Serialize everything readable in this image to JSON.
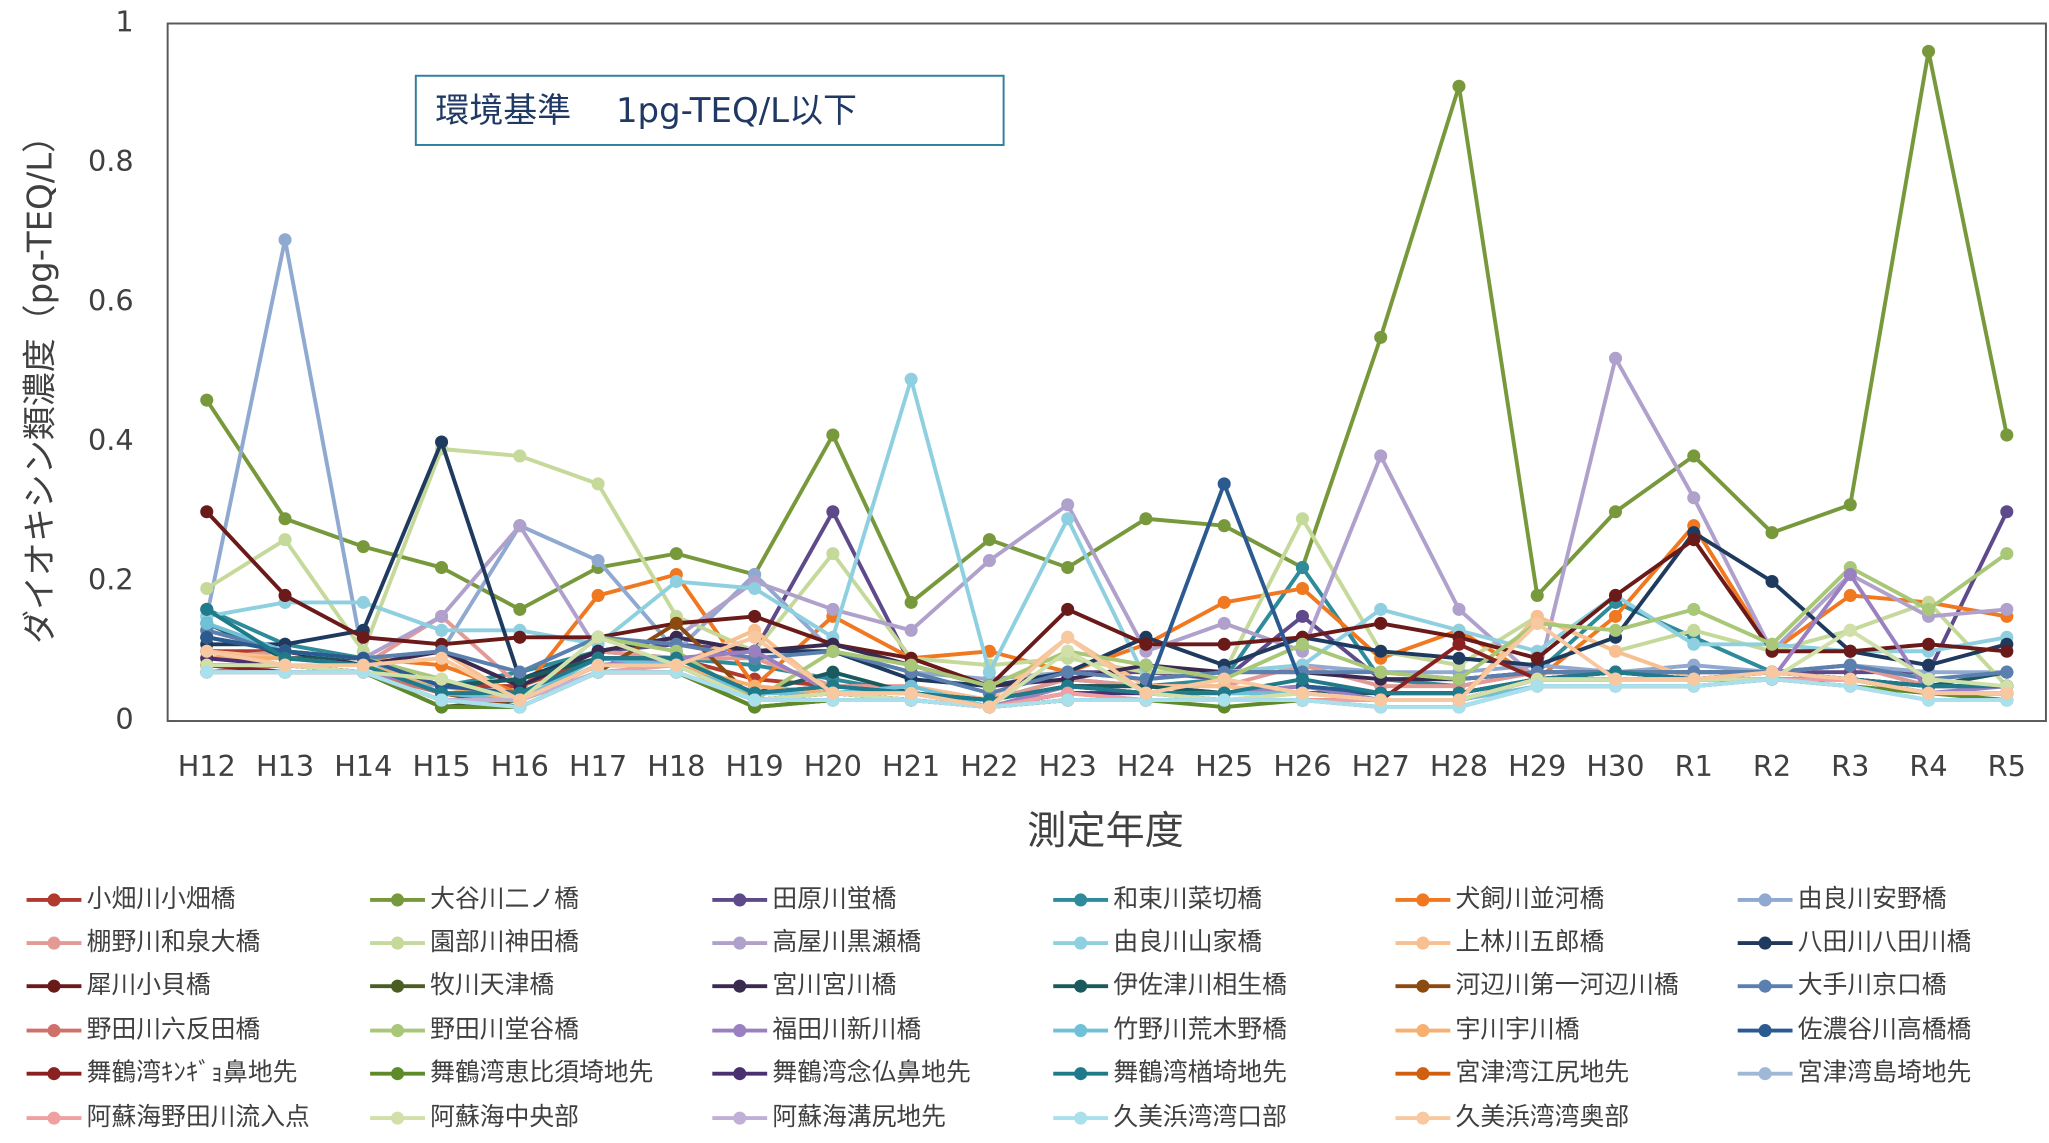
{
  "chart_data": {
    "type": "line",
    "annotation": "環境基準　 1pg-TEQ/L以下",
    "xlabel": "測定年度",
    "ylabel": "ダイオキシン類濃度（pg-TEQ/L）",
    "categories": [
      "H12",
      "H13",
      "H14",
      "H15",
      "H16",
      "H17",
      "H18",
      "H19",
      "H20",
      "H21",
      "H22",
      "H23",
      "H24",
      "H25",
      "H26",
      "H27",
      "H28",
      "H29",
      "H30",
      "R1",
      "R2",
      "R3",
      "R4",
      "R5"
    ],
    "ylim": [
      0,
      1
    ],
    "yticks": [
      0,
      0.2,
      0.4,
      0.6,
      0.8,
      1
    ],
    "grid": false,
    "legend": "bottom",
    "series": [
      {
        "name": "小畑川小畑橋",
        "color": "#b03a2e",
        "values": [
          0.1,
          0.1,
          0.09,
          0.05,
          0.05,
          0.09,
          0.09,
          0.06,
          0.05,
          0.04,
          0.02,
          0.05,
          0.05,
          0.04,
          0.05,
          0.04,
          0.04,
          0.06,
          0.07,
          0.06,
          0.07,
          0.06,
          0.04,
          0.04
        ]
      },
      {
        "name": "大谷川二ノ橋",
        "color": "#77993c",
        "values": [
          0.46,
          0.29,
          0.25,
          0.22,
          0.16,
          0.22,
          0.24,
          0.21,
          0.41,
          0.17,
          0.26,
          0.22,
          0.29,
          0.28,
          0.22,
          0.55,
          0.91,
          0.18,
          0.3,
          0.38,
          0.27,
          0.31,
          0.96,
          0.41
        ]
      },
      {
        "name": "田原川蛍橋",
        "color": "#5e4a8a",
        "values": [
          0.13,
          0.1,
          0.08,
          0.1,
          0.05,
          0.1,
          0.11,
          0.1,
          0.3,
          0.08,
          0.05,
          0.07,
          0.07,
          0.06,
          0.15,
          0.06,
          0.06,
          0.07,
          0.07,
          0.07,
          0.07,
          0.07,
          0.07,
          0.3
        ]
      },
      {
        "name": "和束川菜切橋",
        "color": "#2e8b9a",
        "values": [
          0.16,
          0.11,
          0.09,
          0.05,
          0.07,
          0.1,
          0.09,
          0.08,
          0.06,
          0.04,
          0.03,
          0.06,
          0.05,
          0.06,
          0.22,
          0.06,
          0.05,
          0.07,
          0.17,
          0.12,
          0.07,
          0.08,
          0.05,
          0.05
        ]
      },
      {
        "name": "犬飼川並河橋",
        "color": "#f07820",
        "values": [
          0.1,
          0.09,
          0.09,
          0.08,
          0.04,
          0.18,
          0.21,
          0.05,
          0.15,
          0.09,
          0.1,
          0.07,
          0.11,
          0.17,
          0.19,
          0.09,
          0.13,
          0.06,
          0.15,
          0.28,
          0.1,
          0.18,
          0.17,
          0.15
        ]
      },
      {
        "name": "由良川安野橋",
        "color": "#8fa9d0",
        "values": [
          0.15,
          0.69,
          0.09,
          0.1,
          0.28,
          0.23,
          0.1,
          0.21,
          0.1,
          0.07,
          0.06,
          0.07,
          0.06,
          0.07,
          0.08,
          0.07,
          0.07,
          0.08,
          0.07,
          0.08,
          0.07,
          0.08,
          0.07,
          0.07
        ]
      },
      {
        "name": "棚野川和泉大橋",
        "color": "#e39a95",
        "values": [
          0.09,
          0.1,
          0.08,
          0.15,
          0.05,
          0.1,
          0.09,
          0.09,
          0.05,
          0.05,
          0.03,
          0.06,
          0.05,
          0.05,
          0.08,
          0.05,
          0.05,
          0.07,
          0.07,
          0.07,
          0.07,
          0.08,
          0.05,
          0.05
        ]
      },
      {
        "name": "園部川神田橋",
        "color": "#c5d99a",
        "values": [
          0.19,
          0.26,
          0.1,
          0.39,
          0.38,
          0.34,
          0.15,
          0.1,
          0.24,
          0.09,
          0.08,
          0.09,
          0.07,
          0.07,
          0.29,
          0.1,
          0.08,
          0.15,
          0.1,
          0.13,
          0.1,
          0.13,
          0.17,
          0.05
        ]
      },
      {
        "name": "高屋川黒瀬橋",
        "color": "#b0a0cc",
        "values": [
          0.12,
          0.1,
          0.09,
          0.15,
          0.28,
          0.1,
          0.12,
          0.2,
          0.16,
          0.13,
          0.23,
          0.31,
          0.1,
          0.14,
          0.1,
          0.38,
          0.16,
          0.06,
          0.52,
          0.32,
          0.1,
          0.21,
          0.15,
          0.16
        ]
      },
      {
        "name": "由良川山家橋",
        "color": "#8fd0e0",
        "values": [
          0.15,
          0.17,
          0.17,
          0.13,
          0.13,
          0.11,
          0.2,
          0.19,
          0.12,
          0.49,
          0.07,
          0.29,
          0.06,
          0.07,
          0.08,
          0.16,
          0.13,
          0.1,
          0.18,
          0.11,
          0.11,
          0.1,
          0.1,
          0.12
        ]
      },
      {
        "name": "上林川五郎橋",
        "color": "#f8c090",
        "values": [
          0.1,
          0.09,
          0.08,
          0.1,
          0.03,
          0.08,
          0.08,
          0.13,
          0.04,
          0.05,
          0.03,
          0.12,
          0.05,
          0.05,
          0.04,
          0.03,
          0.03,
          0.15,
          0.1,
          0.06,
          0.07,
          0.06,
          0.04,
          0.04
        ]
      },
      {
        "name": "八田川八田川橋",
        "color": "#1f3a5f",
        "values": [
          0.11,
          0.11,
          0.13,
          0.4,
          0.06,
          0.1,
          0.12,
          0.1,
          0.1,
          0.06,
          0.05,
          0.07,
          0.12,
          0.08,
          0.12,
          0.1,
          0.09,
          0.08,
          0.12,
          0.27,
          0.2,
          0.1,
          0.08,
          0.11
        ]
      },
      {
        "name": "犀川小貝橋",
        "color": "#6b1a1a",
        "values": [
          0.3,
          0.18,
          0.12,
          0.11,
          0.12,
          0.12,
          0.14,
          0.15,
          0.11,
          0.09,
          0.05,
          0.16,
          0.11,
          0.11,
          0.12,
          0.14,
          0.12,
          0.09,
          0.18,
          0.26,
          0.1,
          0.1,
          0.11,
          0.1
        ]
      },
      {
        "name": "牧川天津橋",
        "color": "#4a5e23",
        "values": [
          0.08,
          0.07,
          0.07,
          0.02,
          0.03,
          0.07,
          0.07,
          0.02,
          0.03,
          0.03,
          0.02,
          0.03,
          0.03,
          0.03,
          0.03,
          0.03,
          0.03,
          0.06,
          0.06,
          0.06,
          0.06,
          0.06,
          0.04,
          0.04
        ]
      },
      {
        "name": "宮川宮川橋",
        "color": "#3b2a50",
        "values": [
          0.12,
          0.1,
          0.08,
          0.1,
          0.05,
          0.1,
          0.12,
          0.1,
          0.11,
          0.08,
          0.05,
          0.06,
          0.08,
          0.07,
          0.07,
          0.06,
          0.06,
          0.07,
          0.07,
          0.06,
          0.07,
          0.06,
          0.05,
          0.05
        ]
      },
      {
        "name": "伊佐津川相生橋",
        "color": "#1a5a5e",
        "values": [
          0.14,
          0.09,
          0.09,
          0.05,
          0.06,
          0.09,
          0.09,
          0.04,
          0.07,
          0.04,
          0.03,
          0.05,
          0.05,
          0.04,
          0.04,
          0.04,
          0.04,
          0.06,
          0.07,
          0.07,
          0.07,
          0.06,
          0.05,
          0.07
        ]
      },
      {
        "name": "河辺川第一河辺川橋",
        "color": "#8b4a10",
        "values": [
          0.08,
          0.08,
          0.07,
          0.04,
          0.02,
          0.07,
          0.14,
          0.03,
          0.04,
          0.03,
          0.02,
          0.03,
          0.03,
          0.03,
          0.03,
          0.03,
          0.03,
          0.06,
          0.06,
          0.06,
          0.06,
          0.06,
          0.04,
          0.04
        ]
      },
      {
        "name": "大手川京口橋",
        "color": "#5b80b0",
        "values": [
          0.13,
          0.1,
          0.09,
          0.1,
          0.07,
          0.12,
          0.11,
          0.09,
          0.1,
          0.07,
          0.04,
          0.07,
          0.06,
          0.07,
          0.07,
          0.07,
          0.06,
          0.07,
          0.07,
          0.07,
          0.07,
          0.08,
          0.06,
          0.07
        ]
      },
      {
        "name": "野田川六反田橋",
        "color": "#d0706a",
        "values": [
          0.07,
          0.08,
          0.07,
          0.04,
          0.03,
          0.08,
          0.08,
          0.04,
          0.04,
          0.03,
          0.02,
          0.04,
          0.03,
          0.03,
          0.03,
          0.03,
          0.03,
          0.06,
          0.06,
          0.06,
          0.06,
          0.06,
          0.04,
          0.04
        ]
      },
      {
        "name": "野田川堂谷橋",
        "color": "#a8c878",
        "values": [
          0.12,
          0.1,
          0.09,
          0.06,
          0.03,
          0.12,
          0.1,
          0.03,
          0.1,
          0.08,
          0.05,
          0.1,
          0.08,
          0.06,
          0.11,
          0.07,
          0.06,
          0.14,
          0.13,
          0.16,
          0.11,
          0.22,
          0.16,
          0.24
        ]
      },
      {
        "name": "福田川新川橋",
        "color": "#9a80c0",
        "values": [
          0.1,
          0.08,
          0.07,
          0.05,
          0.03,
          0.08,
          0.09,
          0.1,
          0.04,
          0.03,
          0.02,
          0.05,
          0.04,
          0.04,
          0.05,
          0.03,
          0.03,
          0.06,
          0.07,
          0.06,
          0.06,
          0.21,
          0.04,
          0.05
        ]
      },
      {
        "name": "竹野川荒木野橋",
        "color": "#70c0d8",
        "values": [
          0.14,
          0.1,
          0.09,
          0.04,
          0.03,
          0.09,
          0.08,
          0.04,
          0.04,
          0.05,
          0.02,
          0.04,
          0.04,
          0.04,
          0.04,
          0.03,
          0.03,
          0.05,
          0.05,
          0.05,
          0.06,
          0.05,
          0.04,
          0.04
        ]
      },
      {
        "name": "宇川宇川橋",
        "color": "#f8b070",
        "values": [
          0.09,
          0.09,
          0.08,
          0.05,
          0.03,
          0.08,
          0.08,
          0.05,
          0.04,
          0.04,
          0.02,
          0.04,
          0.03,
          0.03,
          0.04,
          0.03,
          0.03,
          0.06,
          0.06,
          0.06,
          0.06,
          0.06,
          0.04,
          0.04
        ]
      },
      {
        "name": "佐濃谷川高橋橋",
        "color": "#2a5a90",
        "values": [
          0.12,
          0.1,
          0.09,
          0.05,
          0.04,
          0.09,
          0.09,
          0.04,
          0.05,
          0.04,
          0.03,
          0.05,
          0.04,
          0.34,
          0.05,
          0.04,
          0.04,
          0.06,
          0.07,
          0.06,
          0.06,
          0.06,
          0.05,
          0.05
        ]
      },
      {
        "name": "舞鶴湾ｷﾝｷﾞｮ鼻地先",
        "color": "#8b2020",
        "values": [
          0.08,
          0.07,
          0.07,
          0.03,
          0.03,
          0.07,
          0.07,
          0.03,
          0.04,
          0.03,
          0.02,
          0.03,
          0.03,
          0.03,
          0.03,
          0.03,
          0.11,
          0.06,
          0.06,
          0.06,
          0.06,
          0.06,
          0.04,
          0.04
        ]
      },
      {
        "name": "舞鶴湾恵比須埼地先",
        "color": "#5e8a2a",
        "values": [
          0.07,
          0.07,
          0.07,
          0.02,
          0.02,
          0.07,
          0.07,
          0.02,
          0.03,
          0.03,
          0.02,
          0.03,
          0.03,
          0.02,
          0.03,
          0.02,
          0.02,
          0.05,
          0.05,
          0.05,
          0.06,
          0.05,
          0.04,
          0.03
        ]
      },
      {
        "name": "舞鶴湾念仏鼻地先",
        "color": "#4a3070",
        "values": [
          0.09,
          0.08,
          0.07,
          0.03,
          0.03,
          0.08,
          0.08,
          0.03,
          0.04,
          0.03,
          0.02,
          0.04,
          0.04,
          0.03,
          0.03,
          0.03,
          0.03,
          0.06,
          0.06,
          0.06,
          0.06,
          0.06,
          0.04,
          0.04
        ]
      },
      {
        "name": "舞鶴湾楢埼地先",
        "color": "#1f7a8a",
        "values": [
          0.16,
          0.09,
          0.08,
          0.04,
          0.04,
          0.09,
          0.09,
          0.04,
          0.05,
          0.04,
          0.03,
          0.05,
          0.04,
          0.04,
          0.06,
          0.04,
          0.04,
          0.06,
          0.07,
          0.06,
          0.06,
          0.06,
          0.05,
          0.05
        ]
      },
      {
        "name": "宮津湾江尻地先",
        "color": "#d06010",
        "values": [
          0.08,
          0.08,
          0.07,
          0.03,
          0.03,
          0.07,
          0.07,
          0.03,
          0.04,
          0.03,
          0.02,
          0.03,
          0.03,
          0.03,
          0.03,
          0.03,
          0.03,
          0.06,
          0.06,
          0.06,
          0.06,
          0.06,
          0.04,
          0.04
        ]
      },
      {
        "name": "宮津湾島埼地先",
        "color": "#a0b8d8",
        "values": [
          0.07,
          0.07,
          0.07,
          0.03,
          0.02,
          0.07,
          0.07,
          0.03,
          0.03,
          0.03,
          0.02,
          0.03,
          0.03,
          0.03,
          0.03,
          0.02,
          0.02,
          0.05,
          0.05,
          0.05,
          0.06,
          0.05,
          0.03,
          0.03
        ]
      },
      {
        "name": "阿蘇海野田川流入点",
        "color": "#f0a0a0",
        "values": [
          0.07,
          0.07,
          0.07,
          0.03,
          0.03,
          0.07,
          0.08,
          0.03,
          0.04,
          0.03,
          0.02,
          0.04,
          0.03,
          0.03,
          0.03,
          0.03,
          0.03,
          0.06,
          0.06,
          0.06,
          0.06,
          0.06,
          0.04,
          0.04
        ]
      },
      {
        "name": "阿蘇海中央部",
        "color": "#d0e0a8",
        "values": [
          0.08,
          0.08,
          0.07,
          0.06,
          0.03,
          0.12,
          0.08,
          0.03,
          0.04,
          0.03,
          0.02,
          0.1,
          0.04,
          0.03,
          0.04,
          0.03,
          0.03,
          0.06,
          0.06,
          0.06,
          0.06,
          0.13,
          0.06,
          0.05
        ]
      },
      {
        "name": "阿蘇海溝尻地先",
        "color": "#c0b0d8",
        "values": [
          0.07,
          0.07,
          0.07,
          0.03,
          0.03,
          0.07,
          0.07,
          0.03,
          0.03,
          0.03,
          0.02,
          0.03,
          0.03,
          0.03,
          0.03,
          0.02,
          0.02,
          0.05,
          0.05,
          0.05,
          0.06,
          0.05,
          0.03,
          0.03
        ]
      },
      {
        "name": "久美浜湾湾口部",
        "color": "#a8e0ec",
        "values": [
          0.07,
          0.07,
          0.07,
          0.03,
          0.02,
          0.07,
          0.07,
          0.03,
          0.03,
          0.03,
          0.02,
          0.03,
          0.03,
          0.03,
          0.03,
          0.02,
          0.02,
          0.05,
          0.05,
          0.05,
          0.06,
          0.05,
          0.03,
          0.03
        ]
      },
      {
        "name": "久美浜湾湾奥部",
        "color": "#f8c8a0",
        "values": [
          0.1,
          0.08,
          0.08,
          0.09,
          0.03,
          0.08,
          0.08,
          0.12,
          0.04,
          0.04,
          0.02,
          0.12,
          0.04,
          0.06,
          0.04,
          0.03,
          0.03,
          0.14,
          0.06,
          0.06,
          0.07,
          0.06,
          0.04,
          0.04
        ]
      }
    ]
  }
}
